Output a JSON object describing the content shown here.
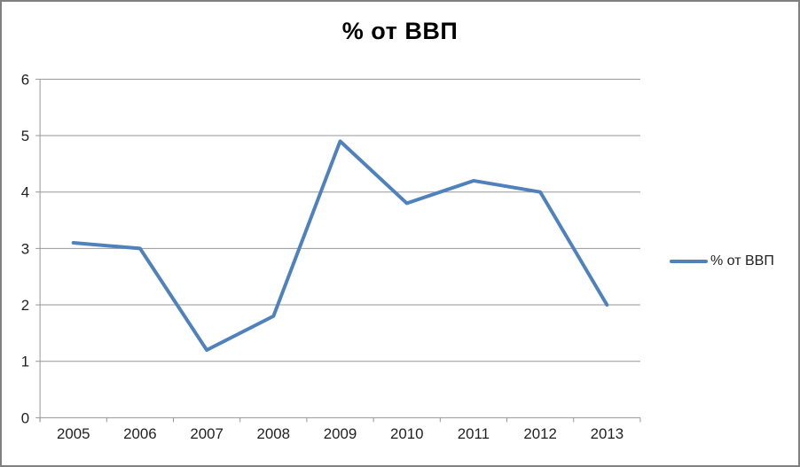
{
  "window": {
    "background_color": "#FFFFFF",
    "border_color": "#808080"
  },
  "chart_data": {
    "type": "line",
    "title": "% от ВВП",
    "categories": [
      "2005",
      "2006",
      "2007",
      "2008",
      "2009",
      "2010",
      "2011",
      "2012",
      "2013"
    ],
    "series": [
      {
        "name": "% от ВВП",
        "color": "#4F81BD",
        "values": [
          3.1,
          3.0,
          1.2,
          1.8,
          4.9,
          3.8,
          4.2,
          4.0,
          2.0
        ]
      }
    ],
    "xlabel": "",
    "ylabel": "",
    "ylim": [
      0,
      6
    ],
    "ytick_step": 1,
    "yticks": [
      0,
      1,
      2,
      3,
      4,
      5,
      6
    ],
    "grid": true,
    "legend_position": "right",
    "gridline_color": "#969696",
    "axis_color": "#969696",
    "tick_label_color": "#1f1f1f",
    "title_color": "#000000"
  }
}
